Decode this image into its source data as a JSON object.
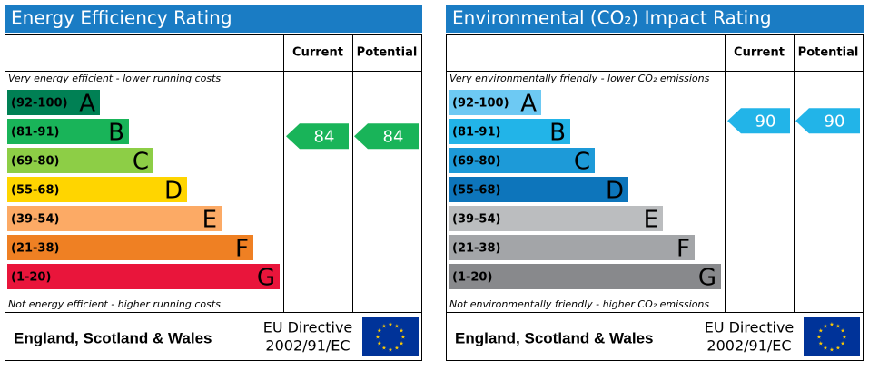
{
  "panels": [
    {
      "title": "Energy Efficiency Rating",
      "headers": [
        "Current",
        "Potential"
      ],
      "top_note": "Very energy efficient - lower running costs",
      "bottom_note": "Not energy efficient - higher running costs",
      "bands": [
        {
          "range": "(92-100)",
          "letter": "A",
          "color": "#008054"
        },
        {
          "range": "(81-91)",
          "letter": "B",
          "color": "#19b459"
        },
        {
          "range": "(69-80)",
          "letter": "C",
          "color": "#8dce46"
        },
        {
          "range": "(55-68)",
          "letter": "D",
          "color": "#ffd500"
        },
        {
          "range": "(39-54)",
          "letter": "E",
          "color": "#fcaa65"
        },
        {
          "range": "(21-38)",
          "letter": "F",
          "color": "#ef8023"
        },
        {
          "range": "(1-20)",
          "letter": "G",
          "color": "#e9153b"
        }
      ],
      "current": 84,
      "potential": 84,
      "footer": {
        "region": "England, Scotland & Wales",
        "directive": "EU Directive",
        "code": "2002/91/EC"
      }
    },
    {
      "title": "Environmental (CO₂) Impact Rating",
      "headers": [
        "Current",
        "Potential"
      ],
      "top_note": "Very environmentally friendly - lower CO₂ emissions",
      "bottom_note": "Not environmentally friendly - higher CO₂ emissions",
      "bands": [
        {
          "range": "(92-100)",
          "letter": "A",
          "color": "#6dc9f3"
        },
        {
          "range": "(81-91)",
          "letter": "B",
          "color": "#22b4e8"
        },
        {
          "range": "(69-80)",
          "letter": "C",
          "color": "#1d9ad8"
        },
        {
          "range": "(55-68)",
          "letter": "D",
          "color": "#0d75bb"
        },
        {
          "range": "(39-54)",
          "letter": "E",
          "color": "#bbbdbf"
        },
        {
          "range": "(21-38)",
          "letter": "F",
          "color": "#a3a5a8"
        },
        {
          "range": "(1-20)",
          "letter": "G",
          "color": "#88898c"
        }
      ],
      "current": 90,
      "potential": 90,
      "footer": {
        "region": "England, Scotland & Wales",
        "directive": "EU Directive",
        "code": "2002/91/EC"
      }
    }
  ]
}
